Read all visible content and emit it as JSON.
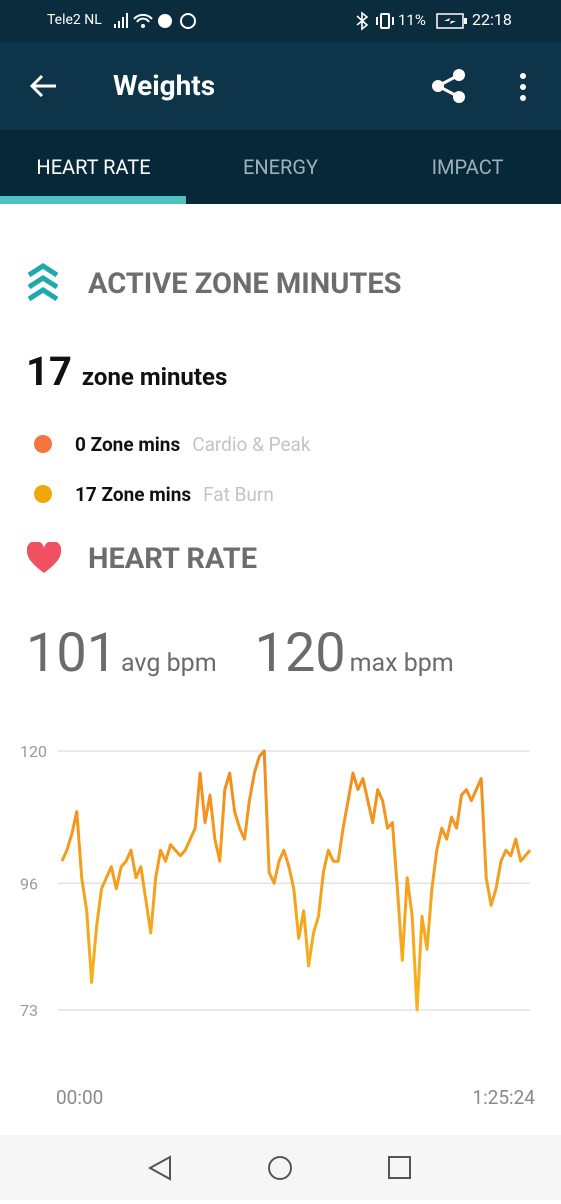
{
  "status_bar": {
    "carrier": "Tele2 NL",
    "battery": "11%",
    "time": "22:18"
  },
  "app_bar": {
    "title": "Weights"
  },
  "tabs": [
    "HEART RATE",
    "ENERGY",
    "IMPACT"
  ],
  "zone": {
    "title": "ACTIVE ZONE MINUTES",
    "total": "17",
    "total_label": "zone minutes",
    "rows": [
      {
        "value": "0 Zone mins",
        "label": "Cardio & Peak"
      },
      {
        "value": "17 Zone mins",
        "label": "Fat Burn"
      }
    ]
  },
  "heart": {
    "title": "HEART RATE",
    "avg": "101",
    "avg_label": "avg bpm",
    "max": "120",
    "max_label": "max bpm"
  },
  "chart_data": {
    "type": "line",
    "color": "#f5a01f",
    "grid": true,
    "ylim": [
      73,
      120
    ],
    "yticks": [
      73,
      96,
      120
    ],
    "xlim": [
      0,
      5124
    ],
    "xticks": [
      {
        "value": 0,
        "label": "00:00"
      },
      {
        "value": 5124,
        "label": "1:25:24"
      }
    ],
    "x": [
      0,
      54,
      108,
      162,
      216,
      270,
      324,
      378,
      432,
      486,
      540,
      594,
      648,
      702,
      756,
      810,
      864,
      918,
      972,
      1026,
      1080,
      1134,
      1188,
      1242,
      1296,
      1350,
      1404,
      1458,
      1512,
      1566,
      1620,
      1674,
      1728,
      1782,
      1836,
      1890,
      1944,
      1998,
      2052,
      2106,
      2160,
      2214,
      2268,
      2322,
      2376,
      2430,
      2484,
      2538,
      2592,
      2646,
      2700,
      2754,
      2808,
      2862,
      2916,
      2970,
      3024,
      3078,
      3132,
      3186,
      3240,
      3294,
      3348,
      3402,
      3456,
      3510,
      3564,
      3618,
      3672,
      3726,
      3780,
      3834,
      3888,
      3942,
      3996,
      4050,
      4104,
      4158,
      4212,
      4266,
      4320,
      4374,
      4428,
      4482,
      4536,
      4590,
      4644,
      4698,
      4752,
      4806,
      4860,
      4914,
      4968,
      5022,
      5124
    ],
    "values": [
      100,
      102,
      105,
      109,
      97,
      91,
      78,
      88,
      95,
      97,
      99,
      95,
      99,
      100,
      102,
      97,
      99,
      93,
      87,
      97,
      102,
      100,
      103,
      102,
      101,
      102,
      104,
      106,
      116,
      107,
      112,
      104,
      100,
      113,
      116,
      109,
      106,
      104,
      111,
      116,
      119,
      120,
      98,
      96,
      100,
      102,
      99,
      95,
      86,
      91,
      81,
      87,
      90,
      98,
      102,
      100,
      100,
      106,
      111,
      116,
      113,
      115,
      111,
      107,
      113,
      111,
      106,
      107,
      95,
      82,
      97,
      90,
      73,
      90,
      84,
      95,
      102,
      106,
      104,
      108,
      106,
      112,
      113,
      111,
      113,
      115,
      97,
      92,
      95,
      100,
      102,
      101,
      104,
      100,
      102
    ]
  }
}
